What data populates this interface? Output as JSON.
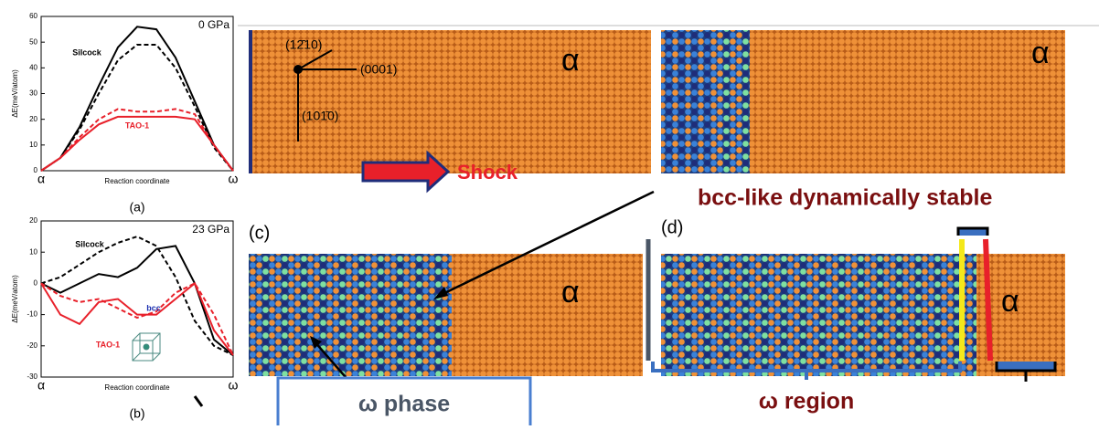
{
  "chart_data": [
    {
      "type": "line",
      "title": "0 GPa",
      "caption": "(a)",
      "x_label": "Reaction coordinate",
      "y_label": "ΔE(meV/atom)",
      "x": [
        0,
        0.1,
        0.2,
        0.3,
        0.4,
        0.5,
        0.6,
        0.7,
        0.8,
        0.9,
        1
      ],
      "xlim": [
        0,
        1
      ],
      "xticks": [
        {
          "value": 0,
          "label": "α"
        },
        {
          "value": 1,
          "label": "ω"
        }
      ],
      "ylim": [
        0,
        60
      ],
      "yticks": [
        0,
        10,
        20,
        30,
        40,
        50,
        60
      ],
      "series": [
        {
          "color": "#000000",
          "dashed": false,
          "values": [
            0,
            5,
            17,
            33,
            48,
            56,
            55,
            44,
            27,
            10,
            0
          ]
        },
        {
          "color": "#000000",
          "dashed": true,
          "values": [
            0,
            5,
            16,
            30,
            43,
            49,
            49,
            40,
            25,
            9,
            0
          ]
        },
        {
          "color": "#e8202a",
          "dashed": false,
          "values": [
            0,
            5,
            12,
            18,
            21,
            21,
            21,
            21,
            20,
            10,
            0
          ]
        },
        {
          "color": "#e8202a",
          "dashed": true,
          "values": [
            0,
            5,
            13,
            20,
            24,
            23,
            23,
            24,
            22,
            10,
            0
          ]
        }
      ],
      "annotations": [
        {
          "text": "Silcock",
          "color": "#000000"
        },
        {
          "text": "TAO-1",
          "color": "#e8202a"
        }
      ]
    },
    {
      "type": "line",
      "title": "23 GPa",
      "caption": "(b)",
      "x_label": "Reaction coordinate",
      "y_label": "ΔE(meV/atom)",
      "x": [
        0,
        0.1,
        0.2,
        0.3,
        0.4,
        0.5,
        0.6,
        0.7,
        0.8,
        0.9,
        1
      ],
      "xlim": [
        0,
        1
      ],
      "xticks": [
        {
          "value": 0,
          "label": "α"
        },
        {
          "value": 1,
          "label": "ω"
        }
      ],
      "ylim": [
        -30,
        20
      ],
      "yticks": [
        -30,
        -20,
        -10,
        0,
        10,
        20
      ],
      "series": [
        {
          "color": "#000000",
          "dashed": false,
          "values": [
            0,
            -3,
            0,
            3,
            2,
            5,
            11,
            12,
            0,
            -18,
            -23
          ]
        },
        {
          "color": "#000000",
          "dashed": true,
          "values": [
            0,
            2,
            6,
            10,
            13,
            15,
            12,
            2,
            -12,
            -20,
            -23
          ]
        },
        {
          "color": "#e8202a",
          "dashed": false,
          "values": [
            0,
            -10,
            -13,
            -6,
            -5,
            -10,
            -10,
            -5,
            0,
            -15,
            -23
          ]
        },
        {
          "color": "#e8202a",
          "dashed": true,
          "values": [
            0,
            -4,
            -6,
            -5,
            -8,
            -11,
            -9,
            -3,
            0,
            -10,
            -23
          ]
        }
      ],
      "annotations": [
        {
          "text": "Silcock",
          "color": "#000000"
        },
        {
          "text": "TAO-1",
          "color": "#e8202a"
        },
        {
          "text": "bcc",
          "color": "#1a2fb0"
        }
      ]
    }
  ],
  "figure_text": {
    "orientation": [
      "(12̄10)",
      "(0001)",
      "(101̄0)"
    ],
    "shock": "Shock",
    "alpha_labels": [
      "α",
      "α",
      "α",
      "α"
    ],
    "panel_c": "(c)",
    "panel_d": "(d)",
    "bcc_note": "bcc-like dynamically stable",
    "omega_phase": "ω phase",
    "omega_region": "ω region"
  }
}
